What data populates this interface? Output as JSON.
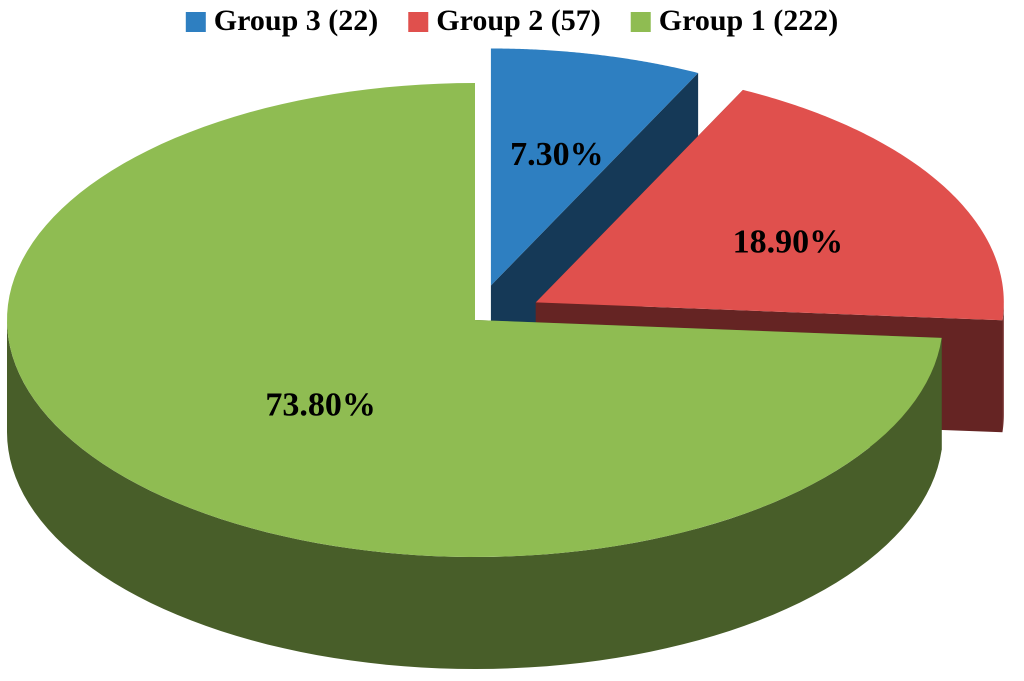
{
  "chart_data": {
    "type": "pie",
    "categories": [
      "Group 3 (22)",
      "Group 2 (57)",
      "Group 1 (222)"
    ],
    "values": [
      7.3,
      18.9,
      73.8
    ],
    "value_labels": [
      "7.30%",
      "18.90%",
      "73.80%"
    ],
    "colors": [
      "#2e7fc1",
      "#e0504d",
      "#8fbc52"
    ],
    "legend": "top"
  }
}
